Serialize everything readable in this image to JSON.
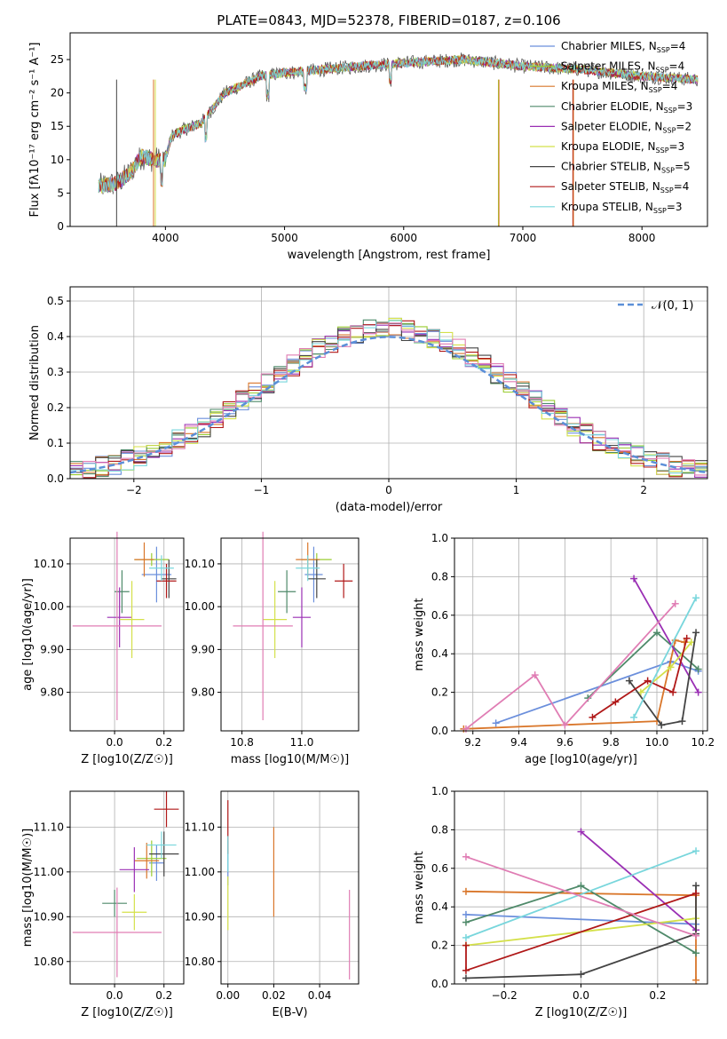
{
  "figure": {
    "title": "PLATE=0843, MJD=52378, FIBERID=0187, z=0.106"
  },
  "legend_models": [
    {
      "name": "Chabrier MILES",
      "nssp": "4",
      "color": "#6b8fdc"
    },
    {
      "name": "Salpeter MILES",
      "nssp": "4",
      "color": "#9acd32"
    },
    {
      "name": "Kroupa MILES",
      "nssp": "4",
      "color": "#d9762a"
    },
    {
      "name": "Chabrier ELODIE",
      "nssp": "3",
      "color": "#4f8a6a"
    },
    {
      "name": "Salpeter ELODIE",
      "nssp": "2",
      "color": "#9a2fb4"
    },
    {
      "name": "Kroupa ELODIE",
      "nssp": "3",
      "color": "#d4e04a"
    },
    {
      "name": "Chabrier STELIB",
      "nssp": "5",
      "color": "#444444"
    },
    {
      "name": "Salpeter STELIB",
      "nssp": "4",
      "color": "#b01818"
    },
    {
      "name": "Kroupa STELIB",
      "nssp": "3",
      "color": "#78d6dc"
    }
  ],
  "chart_data": [
    {
      "id": "spectrum",
      "type": "line",
      "title": "PLATE=0843, MJD=52378, FIBERID=0187, z=0.106",
      "xlabel": "wavelength [Angstrom, rest frame]",
      "ylabel": "Flux [fλ10⁻¹⁷ erg cm⁻² s⁻¹ A⁻¹]",
      "xlim": [
        3200,
        8550
      ],
      "ylim": [
        0,
        29
      ],
      "xticks": [
        4000,
        5000,
        6000,
        7000,
        8000
      ],
      "yticks": [
        0,
        5,
        10,
        15,
        20,
        25
      ],
      "grid": false,
      "legend_position": "top-right",
      "continuum_x": [
        3440,
        3600,
        3700,
        3800,
        3900,
        4000,
        4050,
        4150,
        4300,
        4500,
        4800,
        5000,
        5500,
        6000,
        6500,
        7000,
        7500,
        8000,
        8470
      ],
      "continuum_y": [
        6,
        6.5,
        8,
        10.5,
        10,
        10,
        13.5,
        14.5,
        15.5,
        20,
        22.5,
        23,
        23.8,
        24.5,
        25,
        24,
        23.5,
        22.5,
        22
      ]
    },
    {
      "id": "residuals",
      "type": "bar",
      "xlabel": "(data-model)/error",
      "ylabel": "Normed distribution",
      "xlim": [
        -2.5,
        2.5
      ],
      "ylim": [
        0,
        0.54
      ],
      "xticks": [
        -2,
        -1,
        0,
        1,
        2
      ],
      "yticks": [
        0.0,
        0.1,
        0.2,
        0.3,
        0.4,
        0.5
      ],
      "grid": true,
      "legend_position": "top-right",
      "legend_entries": [
        "𝒩(0, 1)"
      ],
      "reference_curve": "normal(0,1)",
      "bin_width": 0.1
    },
    {
      "id": "age-vs-Z",
      "type": "scatter",
      "xlabel": "Z [log10(Z/Z☉)]",
      "ylabel": "age  [log10(age/yr)]",
      "xlim": [
        -0.18,
        0.28
      ],
      "ylim": [
        9.71,
        10.16
      ],
      "xticks": [
        0.0,
        0.2
      ],
      "yticks": [
        9.8,
        9.9,
        10.0,
        10.1
      ],
      "grid": true,
      "points": [
        {
          "x": 0.17,
          "y": 10.075,
          "xerr": 0.06,
          "yerr": 0.065,
          "color": "#6b8fdc"
        },
        {
          "x": 0.15,
          "y": 10.11,
          "xerr": 0.07,
          "yerr": 0.015,
          "color": "#9acd32"
        },
        {
          "x": 0.12,
          "y": 10.11,
          "xerr": 0.04,
          "yerr": 0.04,
          "color": "#d9762a"
        },
        {
          "x": 0.03,
          "y": 10.035,
          "xerr": 0.03,
          "yerr": 0.05,
          "color": "#4f8a6a"
        },
        {
          "x": 0.02,
          "y": 9.975,
          "xerr": 0.05,
          "yerr": 0.07,
          "color": "#9a2fb4"
        },
        {
          "x": 0.07,
          "y": 9.97,
          "xerr": 0.05,
          "yerr": 0.09,
          "color": "#d4e04a"
        },
        {
          "x": 0.22,
          "y": 10.065,
          "xerr": 0.03,
          "yerr": 0.045,
          "color": "#444444"
        },
        {
          "x": 0.21,
          "y": 10.06,
          "xerr": 0.04,
          "yerr": 0.04,
          "color": "#b01818"
        },
        {
          "x": 0.19,
          "y": 10.09,
          "xerr": 0.05,
          "yerr": 0.03,
          "color": "#78d6dc"
        },
        {
          "x": 0.01,
          "y": 9.955,
          "xerr": 0.18,
          "yerr": 0.22,
          "color": "#e07db4"
        }
      ]
    },
    {
      "id": "age-vs-mass",
      "type": "scatter",
      "xlabel": "mass [log10(M/M☉)]",
      "ylabel": "",
      "xlim": [
        10.73,
        11.19
      ],
      "ylim": [
        9.71,
        10.16
      ],
      "xticks": [
        10.8,
        11.0
      ],
      "yticks": [
        9.8,
        9.9,
        10.0,
        10.1
      ],
      "grid": true,
      "points": [
        {
          "x": 11.04,
          "y": 10.075,
          "xerr": 0.03,
          "yerr": 0.065,
          "color": "#6b8fdc"
        },
        {
          "x": 11.05,
          "y": 10.11,
          "xerr": 0.05,
          "yerr": 0.015,
          "color": "#9acd32"
        },
        {
          "x": 11.02,
          "y": 10.11,
          "xerr": 0.04,
          "yerr": 0.04,
          "color": "#d9762a"
        },
        {
          "x": 10.95,
          "y": 10.035,
          "xerr": 0.03,
          "yerr": 0.05,
          "color": "#4f8a6a"
        },
        {
          "x": 11.0,
          "y": 9.975,
          "xerr": 0.03,
          "yerr": 0.07,
          "color": "#9a2fb4"
        },
        {
          "x": 10.91,
          "y": 9.97,
          "xerr": 0.04,
          "yerr": 0.09,
          "color": "#d4e04a"
        },
        {
          "x": 11.05,
          "y": 10.065,
          "xerr": 0.03,
          "yerr": 0.045,
          "color": "#444444"
        },
        {
          "x": 11.14,
          "y": 10.06,
          "xerr": 0.03,
          "yerr": 0.04,
          "color": "#b01818"
        },
        {
          "x": 11.02,
          "y": 10.09,
          "xerr": 0.04,
          "yerr": 0.03,
          "color": "#78d6dc"
        },
        {
          "x": 10.87,
          "y": 9.955,
          "xerr": 0.1,
          "yerr": 0.22,
          "color": "#e07db4"
        }
      ]
    },
    {
      "id": "mass-weight-vs-age",
      "type": "line",
      "xlabel": "age  [log10(age/yr)]",
      "ylabel": "mass weight",
      "xlim": [
        9.12,
        10.22
      ],
      "ylim": [
        0,
        1.0
      ],
      "xticks": [
        9.2,
        9.4,
        9.6,
        9.8,
        10.0,
        10.2
      ],
      "yticks": [
        0.0,
        0.2,
        0.4,
        0.6,
        0.8,
        1.0
      ],
      "grid": true,
      "series": [
        {
          "color": "#6b8fdc",
          "x": [
            9.3,
            10.06,
            10.18
          ],
          "y": [
            0.04,
            0.36,
            0.31
          ]
        },
        {
          "color": "#d9762a",
          "x": [
            9.16,
            10.0,
            10.08,
            10.12
          ],
          "y": [
            0.01,
            0.05,
            0.47,
            0.46
          ]
        },
        {
          "color": "#4f8a6a",
          "x": [
            9.7,
            10.0,
            10.18
          ],
          "y": [
            0.17,
            0.51,
            0.32
          ]
        },
        {
          "color": "#9a2fb4",
          "x": [
            9.9,
            10.18
          ],
          "y": [
            0.79,
            0.2
          ]
        },
        {
          "color": "#d4e04a",
          "x": [
            9.93,
            10.06,
            10.15
          ],
          "y": [
            0.2,
            0.33,
            0.46
          ]
        },
        {
          "color": "#444444",
          "x": [
            9.88,
            10.02,
            10.11,
            10.17
          ],
          "y": [
            0.26,
            0.03,
            0.05,
            0.51
          ]
        },
        {
          "color": "#b01818",
          "x": [
            9.72,
            9.82,
            9.96,
            10.07,
            10.13
          ],
          "y": [
            0.07,
            0.15,
            0.26,
            0.2,
            0.48
          ]
        },
        {
          "color": "#78d6dc",
          "x": [
            9.9,
            10.17
          ],
          "y": [
            0.07,
            0.69
          ]
        },
        {
          "color": "#e07db4",
          "x": [
            9.17,
            9.47,
            9.6,
            10.08
          ],
          "y": [
            0.01,
            0.29,
            0.03,
            0.66
          ]
        }
      ]
    },
    {
      "id": "mass-vs-Z",
      "type": "scatter",
      "xlabel": "Z [log10(Z/Z☉)]",
      "ylabel": "mass [log10(M/M☉)]",
      "xlim": [
        -0.18,
        0.28
      ],
      "ylim": [
        10.75,
        11.18
      ],
      "xticks": [
        0.0,
        0.2
      ],
      "yticks": [
        10.8,
        10.9,
        11.0,
        11.1
      ],
      "grid": true,
      "points": [
        {
          "x": 0.17,
          "y": 11.02,
          "xerr": 0.03,
          "yerr": 0.04,
          "color": "#6b8fdc"
        },
        {
          "x": 0.15,
          "y": 11.03,
          "xerr": 0.06,
          "yerr": 0.04,
          "color": "#9acd32"
        },
        {
          "x": 0.13,
          "y": 11.025,
          "xerr": 0.05,
          "yerr": 0.04,
          "color": "#d9762a"
        },
        {
          "x": 0.0,
          "y": 10.93,
          "xerr": 0.05,
          "yerr": 0.03,
          "color": "#4f8a6a"
        },
        {
          "x": 0.08,
          "y": 11.005,
          "xerr": 0.06,
          "yerr": 0.05,
          "color": "#9a2fb4"
        },
        {
          "x": 0.08,
          "y": 10.91,
          "xerr": 0.05,
          "yerr": 0.04,
          "color": "#d4e04a"
        },
        {
          "x": 0.2,
          "y": 11.04,
          "xerr": 0.06,
          "yerr": 0.05,
          "color": "#444444"
        },
        {
          "x": 0.21,
          "y": 11.14,
          "xerr": 0.05,
          "yerr": 0.04,
          "color": "#b01818"
        },
        {
          "x": 0.19,
          "y": 11.06,
          "xerr": 0.06,
          "yerr": 0.03,
          "color": "#78d6dc"
        },
        {
          "x": 0.01,
          "y": 10.865,
          "xerr": 0.18,
          "yerr": 0.1,
          "color": "#e07db4"
        }
      ]
    },
    {
      "id": "mass-vs-ebv",
      "type": "scatter",
      "xlabel": "E(B-V)",
      "ylabel": "",
      "xlim": [
        -0.003,
        0.057
      ],
      "ylim": [
        10.75,
        11.18
      ],
      "xticks": [
        0.0,
        0.02,
        0.04
      ],
      "yticks": [
        10.8,
        10.9,
        11.0,
        11.1
      ],
      "grid": true,
      "points": [
        {
          "x": 0.0,
          "y": 11.02,
          "yerr": 0.05,
          "color": "#6b8fdc"
        },
        {
          "x": 0.02,
          "y": 11.0,
          "yerr": 0.1,
          "color": "#d9762a"
        },
        {
          "x": 0.0,
          "y": 10.93,
          "yerr": 0.06,
          "color": "#d4e04a"
        },
        {
          "x": 0.0,
          "y": 11.1,
          "yerr": 0.06,
          "color": "#b01818"
        },
        {
          "x": 0.0,
          "y": 11.04,
          "yerr": 0.04,
          "color": "#78d6dc"
        },
        {
          "x": 0.053,
          "y": 10.86,
          "yerr": 0.1,
          "color": "#e07db4"
        }
      ]
    },
    {
      "id": "mass-weight-vs-Z",
      "type": "line",
      "xlabel": "Z [log10(Z/Z☉)]",
      "ylabel": "mass weight",
      "xlim": [
        -0.33,
        0.33
      ],
      "ylim": [
        0,
        1.0
      ],
      "xticks": [
        -0.2,
        0.0,
        0.2
      ],
      "yticks": [
        0.0,
        0.2,
        0.4,
        0.6,
        0.8,
        1.0
      ],
      "grid": true,
      "series": [
        {
          "color": "#6b8fdc",
          "x": [
            -0.3,
            0.3
          ],
          "y": [
            0.36,
            0.31
          ]
        },
        {
          "color": "#d9762a",
          "x": [
            -0.3,
            0.3,
            0.3
          ],
          "y": [
            0.48,
            0.46,
            0.02
          ]
        },
        {
          "color": "#4f8a6a",
          "x": [
            -0.3,
            0.0,
            0.3
          ],
          "y": [
            0.32,
            0.51,
            0.16
          ]
        },
        {
          "color": "#9a2fb4",
          "x": [
            0.0,
            0.3
          ],
          "y": [
            0.79,
            0.28
          ]
        },
        {
          "color": "#d4e04a",
          "x": [
            -0.3,
            0.3
          ],
          "y": [
            0.2,
            0.34
          ]
        },
        {
          "color": "#444444",
          "x": [
            -0.3,
            0.0,
            0.3,
            0.3
          ],
          "y": [
            0.03,
            0.05,
            0.26,
            0.51
          ]
        },
        {
          "color": "#b01818",
          "x": [
            -0.3,
            -0.3,
            0.3
          ],
          "y": [
            0.2,
            0.07,
            0.47
          ]
        },
        {
          "color": "#78d6dc",
          "x": [
            -0.3,
            0.3
          ],
          "y": [
            0.24,
            0.69
          ]
        },
        {
          "color": "#e07db4",
          "x": [
            -0.3,
            0.3
          ],
          "y": [
            0.66,
            0.25
          ]
        }
      ]
    }
  ]
}
